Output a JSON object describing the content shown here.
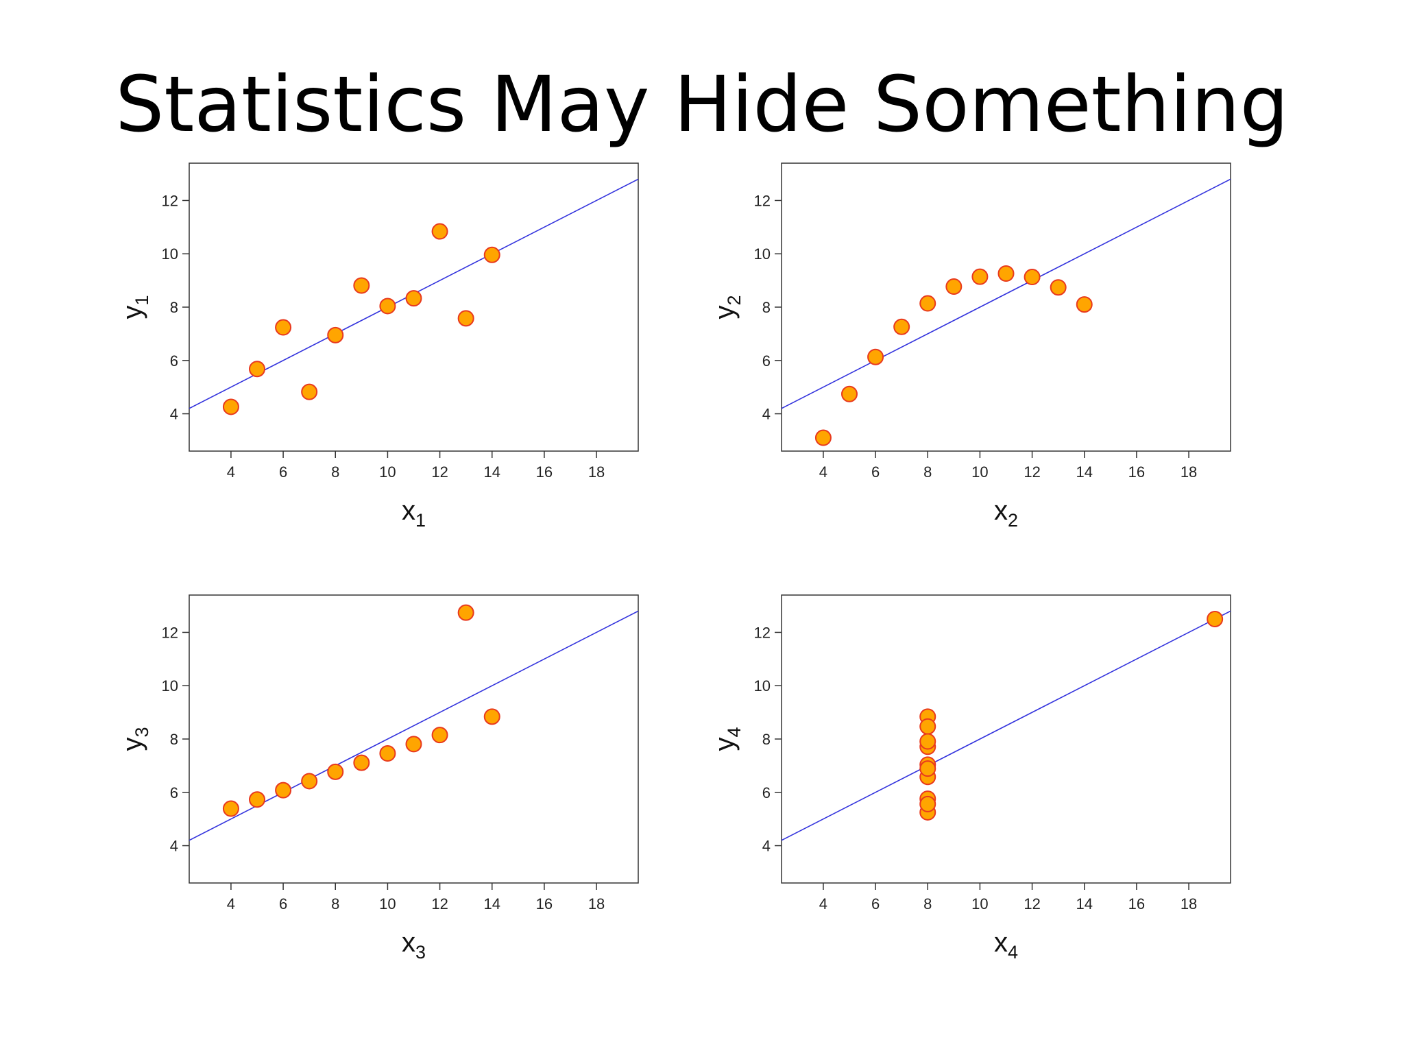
{
  "slide": {
    "title": "Statistics May Hide Something"
  },
  "colors": {
    "point_fill": "#FFA500",
    "point_stroke": "#E8391E",
    "fit_line": "#3333DD",
    "frame": "#333333"
  },
  "chart_data": [
    {
      "type": "scatter",
      "xlabel": "x",
      "xlabel_sub": "1",
      "ylabel": "y",
      "ylabel_sub": "1",
      "xlim": [
        2.4,
        19.6
      ],
      "ylim": [
        2.6,
        13.4
      ],
      "xticks": [
        4,
        6,
        8,
        10,
        12,
        14,
        16,
        18
      ],
      "yticks": [
        4,
        6,
        8,
        10,
        12
      ],
      "grid": false,
      "x": [
        10,
        8,
        13,
        9,
        11,
        14,
        6,
        4,
        12,
        7,
        5
      ],
      "y": [
        8.04,
        6.95,
        7.58,
        8.81,
        8.33,
        9.96,
        7.24,
        4.26,
        10.84,
        4.82,
        5.68
      ],
      "fit": {
        "intercept": 3.0,
        "slope": 0.5
      }
    },
    {
      "type": "scatter",
      "xlabel": "x",
      "xlabel_sub": "2",
      "ylabel": "y",
      "ylabel_sub": "2",
      "xlim": [
        2.4,
        19.6
      ],
      "ylim": [
        2.6,
        13.4
      ],
      "xticks": [
        4,
        6,
        8,
        10,
        12,
        14,
        16,
        18
      ],
      "yticks": [
        4,
        6,
        8,
        10,
        12
      ],
      "grid": false,
      "x": [
        10,
        8,
        13,
        9,
        11,
        14,
        6,
        4,
        12,
        7,
        5
      ],
      "y": [
        9.14,
        8.14,
        8.74,
        8.77,
        9.26,
        8.1,
        6.13,
        3.1,
        9.13,
        7.26,
        4.74
      ],
      "fit": {
        "intercept": 3.0,
        "slope": 0.5
      }
    },
    {
      "type": "scatter",
      "xlabel": "x",
      "xlabel_sub": "3",
      "ylabel": "y",
      "ylabel_sub": "3",
      "xlim": [
        2.4,
        19.6
      ],
      "ylim": [
        2.6,
        13.4
      ],
      "xticks": [
        4,
        6,
        8,
        10,
        12,
        14,
        16,
        18
      ],
      "yticks": [
        4,
        6,
        8,
        10,
        12
      ],
      "grid": false,
      "x": [
        10,
        8,
        13,
        9,
        11,
        14,
        6,
        4,
        12,
        7,
        5
      ],
      "y": [
        7.46,
        6.77,
        12.74,
        7.11,
        7.81,
        8.84,
        6.08,
        5.39,
        8.15,
        6.42,
        5.73
      ],
      "fit": {
        "intercept": 3.0,
        "slope": 0.5
      }
    },
    {
      "type": "scatter",
      "xlabel": "x",
      "xlabel_sub": "4",
      "ylabel": "y",
      "ylabel_sub": "4",
      "xlim": [
        2.4,
        19.6
      ],
      "ylim": [
        2.6,
        13.4
      ],
      "xticks": [
        4,
        6,
        8,
        10,
        12,
        14,
        16,
        18
      ],
      "yticks": [
        4,
        6,
        8,
        10,
        12
      ],
      "grid": false,
      "x": [
        8,
        8,
        8,
        8,
        8,
        8,
        8,
        19,
        8,
        8,
        8
      ],
      "y": [
        6.58,
        5.76,
        7.71,
        8.84,
        8.47,
        7.04,
        5.25,
        12.5,
        5.56,
        7.91,
        6.89
      ],
      "fit": {
        "intercept": 3.0,
        "slope": 0.5
      }
    }
  ]
}
